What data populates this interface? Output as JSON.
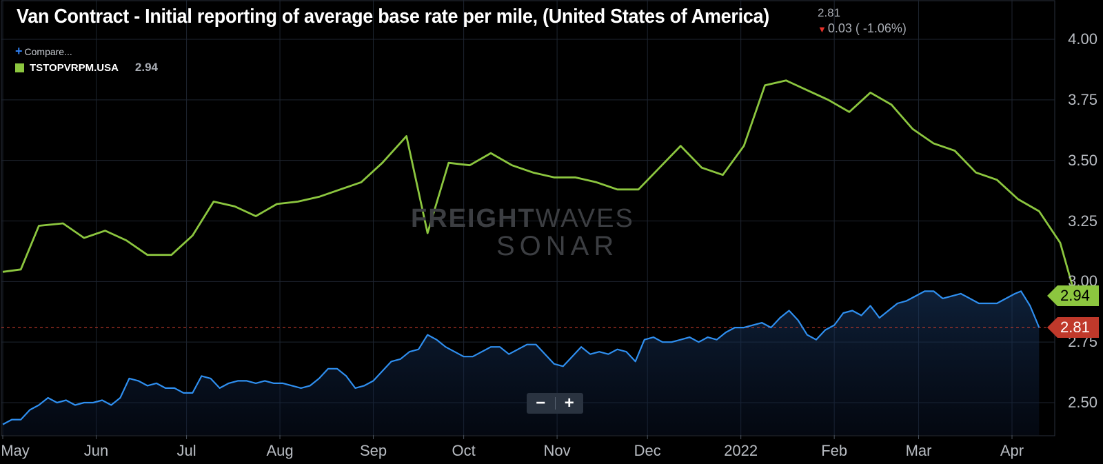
{
  "header": {
    "title": "Van Contract - Initial reporting of average base rate per mile, (United States of America)",
    "last_value": "2.81",
    "change": "0.03 ( -1.06%)"
  },
  "legend": {
    "compare_label": "Compare...",
    "series_label": "TSTOPVRPM.USA",
    "series_value": "2.94"
  },
  "watermark": {
    "line1_bold": "FREIGHT",
    "line1_thin": "WAVES",
    "line2": "SONAR"
  },
  "zoom": {
    "minus": "−",
    "plus": "+"
  },
  "tags": {
    "green": "2.94",
    "red": "2.81"
  },
  "colors": {
    "green": "#8cc63f",
    "blue": "#2f8ff0",
    "red": "#c0392b",
    "grid": "#1e2530"
  },
  "chart_data": {
    "type": "line",
    "title": "Van Contract - Initial reporting of average base rate per mile, (United States of America)",
    "ylim": [
      2.35,
      4.15
    ],
    "y_ticks": [
      "2.50",
      "2.75",
      "3.00",
      "3.25",
      "3.50",
      "3.75",
      "4.00"
    ],
    "x_ticks": [
      "May",
      "Jun",
      "Jul",
      "Aug",
      "Sep",
      "Oct",
      "Nov",
      "Dec",
      "2022",
      "Feb",
      "Mar",
      "Apr"
    ],
    "x_tick_days": [
      0,
      31,
      61,
      92,
      123,
      153,
      184,
      214,
      245,
      276,
      304,
      335
    ],
    "reference_line": 2.81,
    "series": [
      {
        "name": "TSTOPVRPM.USA",
        "color": "#8cc63f",
        "points": [
          [
            0,
            3.04
          ],
          [
            6,
            3.05
          ],
          [
            12,
            3.23
          ],
          [
            20,
            3.24
          ],
          [
            27,
            3.18
          ],
          [
            34,
            3.21
          ],
          [
            41,
            3.17
          ],
          [
            48,
            3.11
          ],
          [
            56,
            3.11
          ],
          [
            63,
            3.19
          ],
          [
            70,
            3.33
          ],
          [
            77,
            3.31
          ],
          [
            84,
            3.27
          ],
          [
            91,
            3.32
          ],
          [
            98,
            3.33
          ],
          [
            105,
            3.35
          ],
          [
            112,
            3.38
          ],
          [
            119,
            3.41
          ],
          [
            126,
            3.49
          ],
          [
            134,
            3.6
          ],
          [
            141,
            3.2
          ],
          [
            148,
            3.49
          ],
          [
            155,
            3.48
          ],
          [
            162,
            3.53
          ],
          [
            169,
            3.48
          ],
          [
            176,
            3.45
          ],
          [
            183,
            3.43
          ],
          [
            190,
            3.43
          ],
          [
            197,
            3.41
          ],
          [
            204,
            3.38
          ],
          [
            211,
            3.38
          ],
          [
            218,
            3.47
          ],
          [
            225,
            3.56
          ],
          [
            232,
            3.47
          ],
          [
            239,
            3.44
          ],
          [
            246,
            3.56
          ],
          [
            253,
            3.81
          ],
          [
            260,
            3.83
          ],
          [
            267,
            3.79
          ],
          [
            274,
            3.75
          ],
          [
            281,
            3.7
          ],
          [
            288,
            3.78
          ],
          [
            295,
            3.73
          ],
          [
            302,
            3.63
          ],
          [
            309,
            3.57
          ],
          [
            316,
            3.54
          ],
          [
            323,
            3.45
          ],
          [
            330,
            3.42
          ],
          [
            337,
            3.34
          ],
          [
            344,
            3.29
          ],
          [
            351,
            3.16
          ],
          [
            356,
            2.94
          ]
        ]
      },
      {
        "name": "Van Contract (initial reporting)",
        "color": "#2f8ff0",
        "points": [
          [
            0,
            2.41
          ],
          [
            3,
            2.43
          ],
          [
            6,
            2.43
          ],
          [
            9,
            2.47
          ],
          [
            12,
            2.49
          ],
          [
            15,
            2.52
          ],
          [
            18,
            2.5
          ],
          [
            21,
            2.51
          ],
          [
            24,
            2.49
          ],
          [
            27,
            2.5
          ],
          [
            30,
            2.5
          ],
          [
            33,
            2.51
          ],
          [
            36,
            2.49
          ],
          [
            39,
            2.52
          ],
          [
            42,
            2.6
          ],
          [
            45,
            2.59
          ],
          [
            48,
            2.57
          ],
          [
            51,
            2.58
          ],
          [
            54,
            2.56
          ],
          [
            57,
            2.56
          ],
          [
            60,
            2.54
          ],
          [
            63,
            2.54
          ],
          [
            66,
            2.61
          ],
          [
            69,
            2.6
          ],
          [
            72,
            2.56
          ],
          [
            75,
            2.58
          ],
          [
            78,
            2.59
          ],
          [
            81,
            2.59
          ],
          [
            84,
            2.58
          ],
          [
            87,
            2.59
          ],
          [
            90,
            2.58
          ],
          [
            93,
            2.58
          ],
          [
            96,
            2.57
          ],
          [
            99,
            2.56
          ],
          [
            102,
            2.57
          ],
          [
            105,
            2.6
          ],
          [
            108,
            2.64
          ],
          [
            111,
            2.64
          ],
          [
            114,
            2.61
          ],
          [
            117,
            2.56
          ],
          [
            120,
            2.57
          ],
          [
            123,
            2.59
          ],
          [
            126,
            2.63
          ],
          [
            129,
            2.67
          ],
          [
            132,
            2.68
          ],
          [
            135,
            2.71
          ],
          [
            138,
            2.72
          ],
          [
            141,
            2.78
          ],
          [
            144,
            2.76
          ],
          [
            147,
            2.73
          ],
          [
            150,
            2.71
          ],
          [
            153,
            2.69
          ],
          [
            156,
            2.69
          ],
          [
            159,
            2.71
          ],
          [
            162,
            2.73
          ],
          [
            165,
            2.73
          ],
          [
            168,
            2.7
          ],
          [
            171,
            2.72
          ],
          [
            174,
            2.74
          ],
          [
            177,
            2.74
          ],
          [
            180,
            2.7
          ],
          [
            183,
            2.66
          ],
          [
            186,
            2.65
          ],
          [
            189,
            2.69
          ],
          [
            192,
            2.73
          ],
          [
            195,
            2.7
          ],
          [
            198,
            2.71
          ],
          [
            201,
            2.7
          ],
          [
            204,
            2.72
          ],
          [
            207,
            2.71
          ],
          [
            210,
            2.67
          ],
          [
            213,
            2.76
          ],
          [
            216,
            2.77
          ],
          [
            219,
            2.75
          ],
          [
            222,
            2.75
          ],
          [
            225,
            2.76
          ],
          [
            228,
            2.77
          ],
          [
            231,
            2.75
          ],
          [
            234,
            2.77
          ],
          [
            237,
            2.76
          ],
          [
            240,
            2.79
          ],
          [
            243,
            2.81
          ],
          [
            246,
            2.81
          ],
          [
            249,
            2.82
          ],
          [
            252,
            2.83
          ],
          [
            255,
            2.81
          ],
          [
            258,
            2.85
          ],
          [
            261,
            2.88
          ],
          [
            264,
            2.84
          ],
          [
            267,
            2.78
          ],
          [
            270,
            2.76
          ],
          [
            273,
            2.8
          ],
          [
            276,
            2.82
          ],
          [
            279,
            2.87
          ],
          [
            282,
            2.88
          ],
          [
            285,
            2.86
          ],
          [
            288,
            2.9
          ],
          [
            291,
            2.85
          ],
          [
            294,
            2.88
          ],
          [
            297,
            2.91
          ],
          [
            300,
            2.92
          ],
          [
            303,
            2.94
          ],
          [
            306,
            2.96
          ],
          [
            309,
            2.96
          ],
          [
            312,
            2.93
          ],
          [
            315,
            2.94
          ],
          [
            318,
            2.95
          ],
          [
            321,
            2.93
          ],
          [
            324,
            2.91
          ],
          [
            327,
            2.91
          ],
          [
            330,
            2.91
          ],
          [
            333,
            2.93
          ],
          [
            336,
            2.95
          ],
          [
            338,
            2.96
          ],
          [
            341,
            2.9
          ],
          [
            343,
            2.84
          ],
          [
            344,
            2.81
          ]
        ]
      }
    ]
  }
}
